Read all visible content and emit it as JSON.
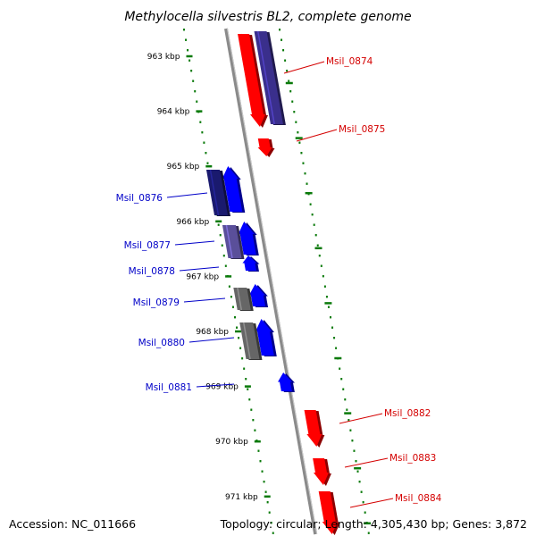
{
  "title": "Methylocella silvestris BL2, complete genome",
  "footer": {
    "accession": "Accession: NC_011666",
    "stats": "Topology: circular; Length: 4,305,430 bp; Genes: 3,872"
  },
  "colors": {
    "forward": "#ff0000",
    "reverse": "#0000ff",
    "cog_blue": "#3a2f8c",
    "cog_navy": "#1a1a6e",
    "cog_purple": "#5a4f9a",
    "cog_gray": "#666666",
    "backbone": "#8a8a8a",
    "tick": "#0a7a0a"
  },
  "scale": {
    "ticks": [
      {
        "label": "963 kbp"
      },
      {
        "label": "964 kbp"
      },
      {
        "label": "965 kbp"
      },
      {
        "label": "966 kbp"
      },
      {
        "label": "967 kbp"
      },
      {
        "label": "968 kbp"
      },
      {
        "label": "969 kbp"
      },
      {
        "label": "970 kbp"
      },
      {
        "label": "971 kbp"
      }
    ]
  },
  "genes": [
    {
      "label": "Msil_0874",
      "strand": "forward",
      "cog": "cog_blue"
    },
    {
      "label": "Msil_0875",
      "strand": "forward",
      "cog": null
    },
    {
      "label": "Msil_0876",
      "strand": "reverse",
      "cog": "cog_navy"
    },
    {
      "label": "Msil_0877",
      "strand": "reverse",
      "cog": "cog_purple"
    },
    {
      "label": "Msil_0878",
      "strand": "reverse",
      "cog": null
    },
    {
      "label": "Msil_0879",
      "strand": "reverse",
      "cog": "cog_gray"
    },
    {
      "label": "Msil_0880",
      "strand": "reverse",
      "cog": "cog_gray"
    },
    {
      "label": "Msil_0881",
      "strand": "reverse",
      "cog": null
    },
    {
      "label": "Msil_0882",
      "strand": "forward",
      "cog": null
    },
    {
      "label": "Msil_0883",
      "strand": "forward",
      "cog": null
    },
    {
      "label": "Msil_0884",
      "strand": "forward",
      "cog": null
    }
  ]
}
